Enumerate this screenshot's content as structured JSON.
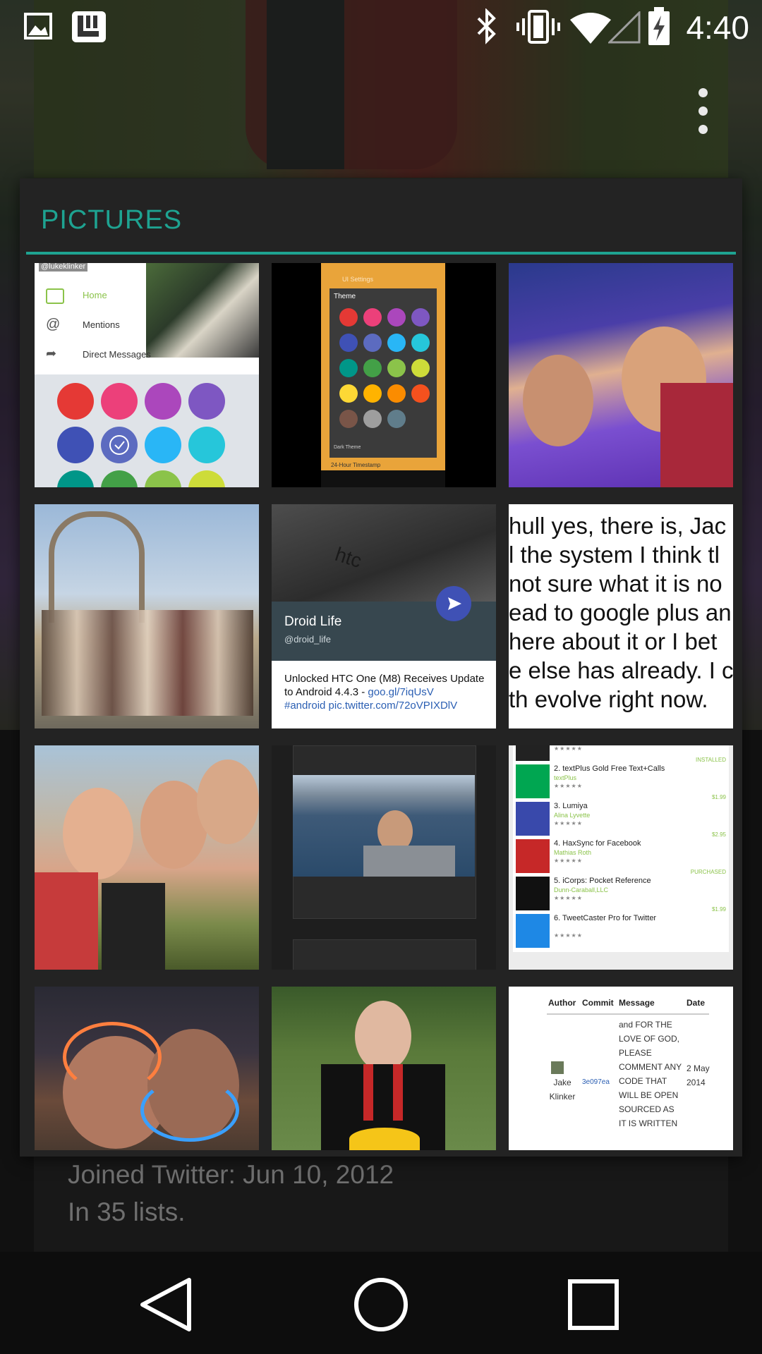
{
  "status_bar": {
    "time": "4:40",
    "icons": [
      "gallery-icon",
      "l-app-icon",
      "bluetooth-icon",
      "vibrate-icon",
      "wifi-icon",
      "cell-signal-icon",
      "battery-charging-icon"
    ]
  },
  "profile": {
    "joined": "Joined Twitter: Jun 10, 2012",
    "lists": "In 35 lists."
  },
  "dialog": {
    "title": "PICTURES",
    "accent_color": "#1ea391"
  },
  "thumbnails": {
    "t1": {
      "handle": "@lukeklinker",
      "menu": [
        "Home",
        "Mentions",
        "Direct Messages"
      ],
      "colors": [
        "#e53935",
        "#ec407a",
        "#ab47bc",
        "#7e57c2",
        "#3f51b5",
        "#5c6bc0",
        "#29b6f6",
        "#26c6da",
        "#009688",
        "#43a047",
        "#8bc34a",
        "#cddc39"
      ]
    },
    "t2": {
      "header": "UI Settings",
      "dialog_title": "Theme",
      "option": "Dark Theme",
      "footer": "24-Hour Timestamp",
      "colors": [
        "#e53935",
        "#ec407a",
        "#ab47bc",
        "#7e57c2",
        "#3f51b5",
        "#5c6bc0",
        "#29b6f6",
        "#26c6da",
        "#009688",
        "#43a047",
        "#8bc34a",
        "#cddc39",
        "#fdd835",
        "#ffb300",
        "#fb8c00",
        "#f4511e",
        "#795548",
        "#9e9e9e",
        "#607d8b"
      ]
    },
    "t5": {
      "brand": "htc",
      "name": "Droid Life",
      "handle": "@droid_life",
      "text": "Unlocked HTC One (M8) Receives Update to Android 4.4.3 - ",
      "link1": "goo.gl/7iqUsV",
      "link2": "#android pic.twitter.com/72oVPIXDlV"
    },
    "t6": {
      "lines": [
        "hull yes, there is, Jac",
        "l the system I think tl",
        "not sure what it is no",
        "ead to google plus an",
        "here about it or I bet",
        "e else has already. I c",
        "th evolve right now."
      ]
    },
    "t9": {
      "apps": [
        {
          "title": "",
          "sub": "",
          "badge": "INSTALLED",
          "price": ""
        },
        {
          "title": "2. textPlus Gold Free Text+Calls",
          "sub": "textPlus",
          "badge": "",
          "price": "$1.99"
        },
        {
          "title": "3. Lumiya",
          "sub": "Alina Lyvette",
          "badge": "",
          "price": "$2.95"
        },
        {
          "title": "4. HaxSync for Facebook",
          "sub": "Mathias Roth",
          "badge": "PURCHASED",
          "price": ""
        },
        {
          "title": "5. iCorps: Pocket Reference",
          "sub": "Dunn-Caraball,LLC",
          "badge": "",
          "price": "$1.99"
        },
        {
          "title": "6. TweetCaster Pro for Twitter",
          "sub": "",
          "badge": "",
          "price": ""
        }
      ],
      "stars": "★★★★★"
    },
    "t12": {
      "headers": [
        "Author",
        "Commit",
        "Message",
        "Date"
      ],
      "author": "Jake Klinker",
      "commit": "3e097ea",
      "message": "and FOR THE LOVE OF GOD, PLEASE COMMENT ANY CODE THAT WILL BE OPEN SOURCED AS IT IS WRITTEN",
      "date": "2 May 2014"
    }
  }
}
